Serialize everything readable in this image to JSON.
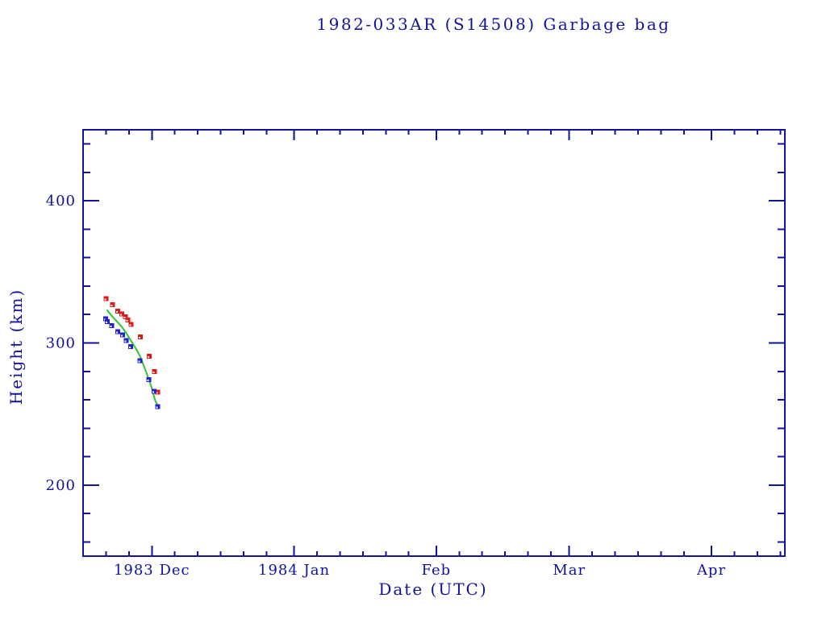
{
  "page": {
    "background_color": "#ffffff"
  },
  "chart_data": {
    "type": "scatter",
    "title": "1982-033AR (S14508) Garbage bag",
    "xlabel": "Date (UTC)",
    "ylabel": "Height (km)",
    "legend": "none",
    "grid": false,
    "colors": {
      "axis_and_text": "#12129b",
      "red_series": "#dc1a1a",
      "blue_series": "#2222cf",
      "green_line": "#2cc82c",
      "marker_dot": "#ffffff"
    },
    "x_axis": {
      "unit": "days since 1983-11-16 00:00 UTC",
      "range": [
        0,
        153
      ],
      "major_ticks": [
        {
          "day": 15,
          "label": "1983 Dec"
        },
        {
          "day": 46,
          "label": "1984 Jan"
        },
        {
          "day": 77,
          "label": "Feb"
        },
        {
          "day": 106,
          "label": "Mar"
        },
        {
          "day": 137,
          "label": "Apr"
        }
      ],
      "minor_tick_days": [
        5,
        10,
        20,
        25,
        30,
        35,
        40,
        51,
        56,
        61,
        66,
        71,
        82,
        87,
        92,
        97,
        102,
        111,
        116,
        121,
        126,
        131,
        142,
        147,
        152
      ]
    },
    "y_axis": {
      "unit": "km",
      "range": [
        150,
        450
      ],
      "major_ticks": [
        {
          "value": 200,
          "label": "200"
        },
        {
          "value": 300,
          "label": "300"
        },
        {
          "value": 400,
          "label": "400"
        }
      ],
      "minor_ticks": [
        160,
        180,
        220,
        240,
        260,
        280,
        320,
        340,
        360,
        380,
        420,
        440
      ]
    },
    "series": [
      {
        "name": "red-squares",
        "type": "scatter",
        "marker": "square-with-white-dot",
        "color": "#dc1a1a",
        "points_day_km": [
          [
            5.0,
            331.3
          ],
          [
            6.4,
            326.8
          ],
          [
            7.6,
            322.5
          ],
          [
            8.4,
            320.4
          ],
          [
            9.2,
            318.3
          ],
          [
            9.8,
            316.3
          ],
          [
            10.5,
            313.0
          ],
          [
            12.5,
            304.3
          ],
          [
            14.4,
            290.6
          ],
          [
            15.6,
            279.9
          ],
          [
            16.3,
            265.4
          ]
        ]
      },
      {
        "name": "blue-squares",
        "type": "scatter",
        "marker": "square-with-white-dot",
        "color": "#2222cf",
        "points_day_km": [
          [
            4.9,
            316.9
          ],
          [
            5.3,
            314.9
          ],
          [
            6.2,
            312.2
          ],
          [
            7.6,
            307.8
          ],
          [
            8.6,
            305.6
          ],
          [
            9.4,
            301.8
          ],
          [
            10.4,
            297.4
          ],
          [
            12.4,
            287.4
          ],
          [
            14.3,
            274.2
          ],
          [
            15.5,
            265.9
          ],
          [
            16.3,
            255.3
          ]
        ]
      },
      {
        "name": "green-line",
        "type": "line",
        "color": "#2cc82c",
        "points_day_km": [
          [
            5.15,
            323.4
          ],
          [
            6.2,
            319.2
          ],
          [
            7.4,
            315.0
          ],
          [
            8.6,
            310.7
          ],
          [
            9.6,
            305.9
          ],
          [
            10.4,
            301.8
          ],
          [
            11.5,
            296.1
          ],
          [
            12.4,
            290.8
          ],
          [
            13.2,
            284.2
          ],
          [
            14.3,
            274.8
          ],
          [
            14.9,
            269.1
          ],
          [
            15.3,
            264.4
          ],
          [
            15.7,
            259.6
          ],
          [
            16.1,
            257.0
          ],
          [
            16.35,
            255.5
          ]
        ]
      }
    ]
  }
}
